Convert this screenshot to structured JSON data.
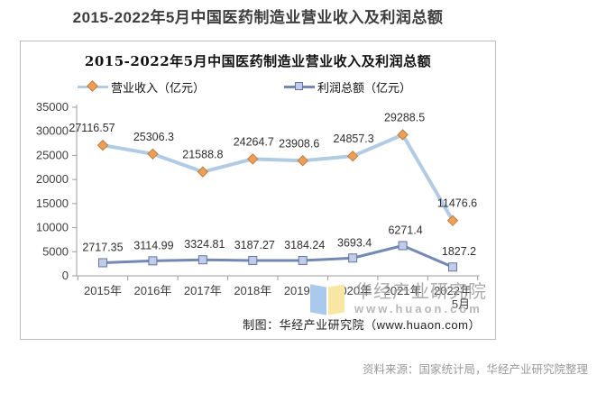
{
  "page_title": "2015-2022年5月中国医药制造业营业收入及利润总额",
  "chart": {
    "title": "2015-2022年5月中国医药制造业营业收入及利润总额",
    "footer": "制图：华经产业研究院（www.huaon.com）",
    "watermark": {
      "name": "华经产业研究院",
      "url": "www.huaon.com"
    }
  },
  "chart_data": {
    "type": "line",
    "title": "2015-2022年5月中国医药制造业营业收入及利润总额",
    "categories": [
      "2015年",
      "2016年",
      "2017年",
      "2018年",
      "2019年",
      "2020年",
      "2021年",
      "2022年"
    ],
    "last_category_note": "5月",
    "series": [
      {
        "name": "营业收入（亿元）",
        "marker": "diamond",
        "values": [
          27116.57,
          25306.3,
          21588.8,
          24264.7,
          23908.6,
          24857.3,
          29288.5,
          11476.6
        ]
      },
      {
        "name": "利润总额（亿元）",
        "marker": "square",
        "values": [
          2717.35,
          3114.99,
          3324.81,
          3187.27,
          3184.24,
          3693.4,
          6271.4,
          1827.2
        ]
      }
    ],
    "ylim": [
      0,
      35000
    ],
    "ytick_step": 5000,
    "grid": false,
    "legend_position": "top"
  },
  "colors": {
    "title": "#3d3d3d",
    "revenue_line": "#b1cbe2",
    "revenue_marker_fill": "#ef9e5a",
    "revenue_marker_border": "#bb7e3e",
    "profit_line": "#7487b5",
    "profit_marker_fill": "#bfccea",
    "profit_marker_border": "#67749f",
    "axis": "#9c9c9c",
    "axis_text": "#404040",
    "value_label": "#2e2e2e",
    "source": "#999999"
  },
  "source_note": "资料来源：国家统计局，华经产业研究院整理"
}
